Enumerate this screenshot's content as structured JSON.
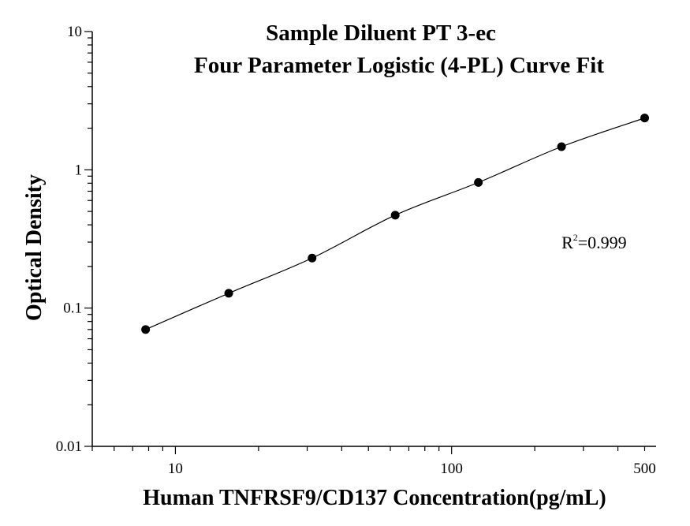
{
  "chart_data": {
    "type": "scatter",
    "title_line1": "Sample Diluent PT 3-ec",
    "title_line2": "Four Parameter Logistic (4-PL) Curve Fit",
    "xlabel": "Human TNFRSF9/CD137 Concentration(pg/mL)",
    "ylabel": "Optical Density",
    "x_scale": "log",
    "y_scale": "log",
    "xlim": [
      5,
      550
    ],
    "ylim": [
      0.01,
      10
    ],
    "x_ticks": [
      {
        "value": 10,
        "label": "10"
      },
      {
        "value": 100,
        "label": "100"
      },
      {
        "value": 500,
        "label": "500"
      }
    ],
    "y_ticks": [
      {
        "value": 0.01,
        "label": "0.01"
      },
      {
        "value": 0.1,
        "label": "0.1"
      },
      {
        "value": 1,
        "label": "1"
      },
      {
        "value": 10,
        "label": "10"
      }
    ],
    "grid": false,
    "series": [
      {
        "points": [
          {
            "x": 7.8,
            "y": 0.07
          },
          {
            "x": 15.6,
            "y": 0.128
          },
          {
            "x": 31.25,
            "y": 0.23
          },
          {
            "x": 62.5,
            "y": 0.47
          },
          {
            "x": 125,
            "y": 0.81
          },
          {
            "x": 250,
            "y": 1.47
          },
          {
            "x": 500,
            "y": 2.37
          }
        ],
        "marker_color": "#000000",
        "fit_line": "4-PL",
        "line_color": "#000000"
      }
    ],
    "annotation": {
      "base": "R",
      "sup": "2",
      "rest": "=0.999",
      "x": 250,
      "y": 0.27
    }
  }
}
